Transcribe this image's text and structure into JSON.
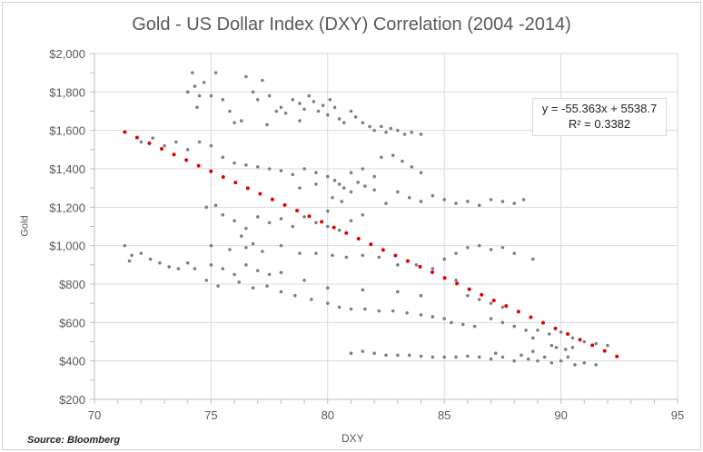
{
  "chart_data": {
    "type": "scatter",
    "title": "Gold - US Dollar Index (DXY) Correlation (2004 -2014)",
    "xlabel": "DXY",
    "ylabel": "Gold",
    "xlim": [
      70,
      95
    ],
    "ylim": [
      200,
      2000
    ],
    "x_ticks": [
      "70",
      "75",
      "80",
      "85",
      "90",
      "95"
    ],
    "y_ticks": [
      "$200",
      "$400",
      "$600",
      "$800",
      "$1,000",
      "$1,200",
      "$1,400",
      "$1,600",
      "$1,800",
      "$2,000"
    ],
    "grid": true,
    "point_color": "#7f7f7f",
    "trendline": {
      "type": "linear",
      "slope": -55.363,
      "intercept": 5538.7,
      "x_range": [
        71.3,
        92.4
      ],
      "color": "#e00000",
      "style": "dotted",
      "equation": "y = -55.363x + 5538.7",
      "r_squared": "R² = 0.3382"
    },
    "points": [
      [
        74.0,
        1800
      ],
      [
        74.2,
        1900
      ],
      [
        74.3,
        1830
      ],
      [
        74.5,
        1780
      ],
      [
        74.4,
        1720
      ],
      [
        74.7,
        1850
      ],
      [
        75.0,
        1780
      ],
      [
        75.2,
        1900
      ],
      [
        75.5,
        1760
      ],
      [
        75.8,
        1700
      ],
      [
        76.0,
        1640
      ],
      [
        76.5,
        1880
      ],
      [
        76.8,
        1800
      ],
      [
        77.0,
        1760
      ],
      [
        77.2,
        1860
      ],
      [
        77.5,
        1780
      ],
      [
        77.8,
        1700
      ],
      [
        78.0,
        1720
      ],
      [
        78.2,
        1690
      ],
      [
        78.5,
        1760
      ],
      [
        78.8,
        1740
      ],
      [
        79.0,
        1710
      ],
      [
        79.2,
        1780
      ],
      [
        79.4,
        1750
      ],
      [
        79.6,
        1700
      ],
      [
        79.8,
        1730
      ],
      [
        80.0,
        1680
      ],
      [
        80.1,
        1760
      ],
      [
        80.3,
        1720
      ],
      [
        80.5,
        1660
      ],
      [
        80.7,
        1640
      ],
      [
        81.0,
        1700
      ],
      [
        81.2,
        1670
      ],
      [
        81.5,
        1640
      ],
      [
        81.8,
        1620
      ],
      [
        82.0,
        1600
      ],
      [
        82.3,
        1620
      ],
      [
        82.5,
        1590
      ],
      [
        82.7,
        1610
      ],
      [
        83.0,
        1600
      ],
      [
        83.3,
        1580
      ],
      [
        83.6,
        1590
      ],
      [
        84.0,
        1580
      ],
      [
        76.3,
        1650
      ],
      [
        77.4,
        1630
      ],
      [
        78.8,
        1650
      ],
      [
        72.0,
        1540
      ],
      [
        72.5,
        1560
      ],
      [
        73.0,
        1520
      ],
      [
        73.5,
        1540
      ],
      [
        74.0,
        1500
      ],
      [
        74.5,
        1540
      ],
      [
        75.0,
        1520
      ],
      [
        75.5,
        1460
      ],
      [
        76.0,
        1430
      ],
      [
        76.5,
        1420
      ],
      [
        77.0,
        1410
      ],
      [
        77.5,
        1400
      ],
      [
        78.0,
        1390
      ],
      [
        78.5,
        1370
      ],
      [
        79.0,
        1400
      ],
      [
        79.5,
        1380
      ],
      [
        80.0,
        1360
      ],
      [
        80.3,
        1340
      ],
      [
        80.5,
        1320
      ],
      [
        80.7,
        1300
      ],
      [
        81.0,
        1280
      ],
      [
        81.3,
        1330
      ],
      [
        81.6,
        1310
      ],
      [
        82.0,
        1290
      ],
      [
        80.2,
        1250
      ],
      [
        80.6,
        1230
      ],
      [
        81.0,
        1380
      ],
      [
        81.5,
        1400
      ],
      [
        82.0,
        1360
      ],
      [
        82.3,
        1460
      ],
      [
        82.8,
        1470
      ],
      [
        83.2,
        1440
      ],
      [
        83.6,
        1410
      ],
      [
        84.0,
        1380
      ],
      [
        83.0,
        1280
      ],
      [
        83.5,
        1250
      ],
      [
        84.0,
        1230
      ],
      [
        84.5,
        1260
      ],
      [
        85.0,
        1240
      ],
      [
        85.5,
        1220
      ],
      [
        86.0,
        1230
      ],
      [
        86.5,
        1210
      ],
      [
        87.0,
        1240
      ],
      [
        87.5,
        1230
      ],
      [
        88.0,
        1220
      ],
      [
        88.4,
        1240
      ],
      [
        82.5,
        1220
      ],
      [
        79.5,
        1320
      ],
      [
        78.8,
        1300
      ],
      [
        80.0,
        1180
      ],
      [
        74.8,
        1200
      ],
      [
        75.2,
        1210
      ],
      [
        75.5,
        1160
      ],
      [
        76.0,
        1130
      ],
      [
        76.5,
        1090
      ],
      [
        77.0,
        1150
      ],
      [
        77.5,
        1120
      ],
      [
        78.0,
        1140
      ],
      [
        78.5,
        1100
      ],
      [
        79.0,
        1150
      ],
      [
        79.5,
        1120
      ],
      [
        80.0,
        1100
      ],
      [
        80.5,
        1080
      ],
      [
        81.0,
        1130
      ],
      [
        81.5,
        1160
      ],
      [
        76.3,
        1050
      ],
      [
        76.8,
        1010
      ],
      [
        71.3,
        1000
      ],
      [
        71.6,
        950
      ],
      [
        72.0,
        960
      ],
      [
        72.4,
        930
      ],
      [
        72.8,
        910
      ],
      [
        73.2,
        890
      ],
      [
        73.6,
        880
      ],
      [
        74.0,
        910
      ],
      [
        74.3,
        880
      ],
      [
        71.5,
        920
      ],
      [
        75.0,
        1000
      ],
      [
        75.8,
        980
      ],
      [
        76.5,
        990
      ],
      [
        77.2,
        970
      ],
      [
        78.0,
        1000
      ],
      [
        78.8,
        960
      ],
      [
        79.5,
        960
      ],
      [
        80.2,
        950
      ],
      [
        80.8,
        940
      ],
      [
        81.5,
        950
      ],
      [
        82.2,
        940
      ],
      [
        83.0,
        900
      ],
      [
        83.8,
        900
      ],
      [
        84.5,
        880
      ],
      [
        85.0,
        930
      ],
      [
        85.5,
        960
      ],
      [
        86.0,
        990
      ],
      [
        86.5,
        1000
      ],
      [
        87.0,
        980
      ],
      [
        87.5,
        990
      ],
      [
        88.0,
        960
      ],
      [
        88.8,
        930
      ],
      [
        75.0,
        900
      ],
      [
        75.5,
        880
      ],
      [
        76.0,
        850
      ],
      [
        76.5,
        900
      ],
      [
        77.0,
        870
      ],
      [
        77.5,
        850
      ],
      [
        78.0,
        860
      ],
      [
        74.8,
        820
      ],
      [
        75.3,
        790
      ],
      [
        76.2,
        810
      ],
      [
        76.8,
        780
      ],
      [
        77.4,
        790
      ],
      [
        78.0,
        760
      ],
      [
        78.6,
        740
      ],
      [
        79.3,
        720
      ],
      [
        80.0,
        700
      ],
      [
        80.5,
        680
      ],
      [
        81.0,
        670
      ],
      [
        81.6,
        670
      ],
      [
        82.2,
        660
      ],
      [
        82.8,
        660
      ],
      [
        83.4,
        650
      ],
      [
        84.0,
        640
      ],
      [
        84.5,
        630
      ],
      [
        85.0,
        620
      ],
      [
        85.3,
        600
      ],
      [
        85.8,
        590
      ],
      [
        86.3,
        580
      ],
      [
        79.0,
        820
      ],
      [
        80.0,
        780
      ],
      [
        81.5,
        770
      ],
      [
        83.0,
        760
      ],
      [
        84.0,
        740
      ],
      [
        85.5,
        820
      ],
      [
        86.0,
        740
      ],
      [
        86.5,
        720
      ],
      [
        87.0,
        700
      ],
      [
        87.5,
        680
      ],
      [
        87.0,
        620
      ],
      [
        87.5,
        600
      ],
      [
        88.0,
        580
      ],
      [
        88.5,
        560
      ],
      [
        89.0,
        560
      ],
      [
        89.5,
        540
      ],
      [
        90.0,
        550
      ],
      [
        90.5,
        520
      ],
      [
        91.0,
        500
      ],
      [
        91.5,
        490
      ],
      [
        92.0,
        480
      ],
      [
        88.8,
        520
      ],
      [
        89.6,
        480
      ],
      [
        90.2,
        460
      ],
      [
        81.0,
        440
      ],
      [
        81.5,
        450
      ],
      [
        82.0,
        440
      ],
      [
        82.5,
        430
      ],
      [
        83.0,
        430
      ],
      [
        83.5,
        430
      ],
      [
        84.0,
        425
      ],
      [
        84.5,
        420
      ],
      [
        85.0,
        420
      ],
      [
        85.5,
        420
      ],
      [
        86.0,
        425
      ],
      [
        86.5,
        420
      ],
      [
        87.0,
        410
      ],
      [
        87.5,
        420
      ],
      [
        88.0,
        400
      ],
      [
        88.3,
        430
      ],
      [
        88.6,
        410
      ],
      [
        89.0,
        400
      ],
      [
        89.3,
        420
      ],
      [
        89.6,
        390
      ],
      [
        90.0,
        400
      ],
      [
        90.3,
        420
      ],
      [
        90.6,
        380
      ],
      [
        91.0,
        390
      ],
      [
        91.5,
        380
      ],
      [
        87.2,
        440
      ],
      [
        88.8,
        450
      ],
      [
        89.8,
        470
      ],
      [
        90.5,
        470
      ]
    ]
  }
}
